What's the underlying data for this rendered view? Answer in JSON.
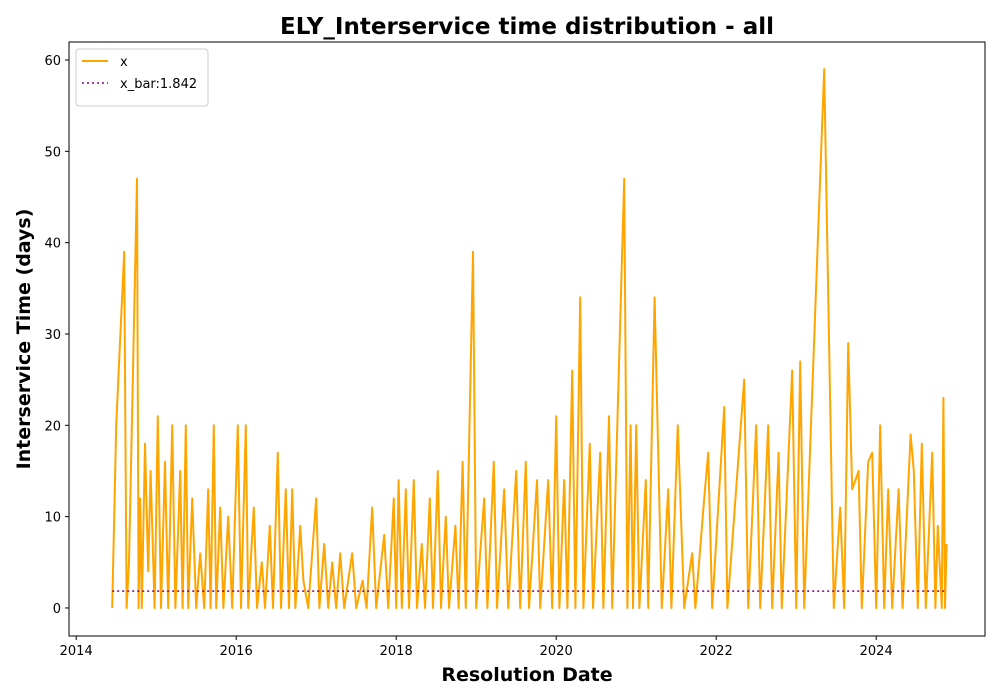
{
  "chart_data": {
    "type": "line",
    "title": "ELY_Interservice time distribution - all",
    "x_label": "Resolution Date",
    "y_label": "Interservice Time (days)",
    "xlim": [
      2013.91,
      2025.36
    ],
    "xticks": [
      2014,
      2016,
      2018,
      2020,
      2022,
      2024
    ],
    "ylim": [
      -3.07,
      61.97
    ],
    "yticks": [
      0,
      10,
      20,
      30,
      40,
      50,
      60
    ],
    "legend": "upper left",
    "series": [
      {
        "name": "x",
        "color": "#ffa500",
        "style": "solid",
        "x": [
          2014.45,
          2014.5,
          2014.6,
          2014.63,
          2014.66,
          2014.76,
          2014.78,
          2014.8,
          2014.82,
          2014.86,
          2014.9,
          2014.93,
          2014.98,
          2015.02,
          2015.06,
          2015.11,
          2015.15,
          2015.2,
          2015.24,
          2015.3,
          2015.33,
          2015.37,
          2015.4,
          2015.45,
          2015.5,
          2015.55,
          2015.6,
          2015.65,
          2015.68,
          2015.72,
          2015.75,
          2015.8,
          2015.84,
          2015.9,
          2015.95,
          2016.02,
          2016.06,
          2016.12,
          2016.15,
          2016.22,
          2016.26,
          2016.32,
          2016.36,
          2016.42,
          2016.46,
          2016.52,
          2016.56,
          2016.62,
          2016.66,
          2016.7,
          2016.74,
          2016.8,
          2016.84,
          2016.9,
          2017.0,
          2017.04,
          2017.1,
          2017.15,
          2017.2,
          2017.25,
          2017.3,
          2017.35,
          2017.45,
          2017.5,
          2017.58,
          2017.63,
          2017.7,
          2017.75,
          2017.85,
          2017.9,
          2017.97,
          2018.0,
          2018.03,
          2018.07,
          2018.12,
          2018.16,
          2018.22,
          2018.26,
          2018.32,
          2018.36,
          2018.42,
          2018.46,
          2018.52,
          2018.56,
          2018.62,
          2018.66,
          2018.74,
          2018.78,
          2018.83,
          2018.87,
          2018.96,
          2019.0,
          2019.1,
          2019.14,
          2019.22,
          2019.26,
          2019.35,
          2019.4,
          2019.5,
          2019.55,
          2019.62,
          2019.66,
          2019.76,
          2019.8,
          2019.9,
          2019.95,
          2020.0,
          2020.04,
          2020.1,
          2020.14,
          2020.2,
          2020.24,
          2020.3,
          2020.34,
          2020.42,
          2020.46,
          2020.55,
          2020.59,
          2020.66,
          2020.7,
          2020.85,
          2020.89,
          2020.93,
          2020.96,
          2021.0,
          2021.04,
          2021.12,
          2021.15,
          2021.23,
          2021.32,
          2021.4,
          2021.44,
          2021.52,
          2021.6,
          2021.7,
          2021.74,
          2021.85,
          2021.9,
          2021.95,
          2022.1,
          2022.14,
          2022.35,
          2022.4,
          2022.5,
          2022.55,
          2022.65,
          2022.7,
          2022.78,
          2022.82,
          2022.95,
          2023.0,
          2023.05,
          2023.1,
          2023.35,
          2023.47,
          2023.55,
          2023.6,
          2023.65,
          2023.7,
          2023.78,
          2023.82,
          2023.9,
          2023.95,
          2024.0,
          2024.05,
          2024.1,
          2024.15,
          2024.2,
          2024.28,
          2024.33,
          2024.43,
          2024.47,
          2024.52,
          2024.57,
          2024.62,
          2024.7,
          2024.74,
          2024.77,
          2024.82,
          2024.84,
          2024.86,
          2024.88
        ],
        "values": [
          0,
          20,
          39,
          0,
          5,
          47,
          0,
          12,
          0,
          18,
          4,
          15,
          0,
          21,
          0,
          16,
          0,
          20,
          0,
          15,
          0,
          20,
          0,
          12,
          0,
          6,
          0,
          13,
          0,
          20,
          0,
          11,
          0,
          10,
          0,
          20,
          0,
          20,
          0,
          11,
          0,
          5,
          0,
          9,
          0,
          17,
          0,
          13,
          0,
          13,
          0,
          9,
          3,
          0,
          12,
          0,
          7,
          0,
          5,
          0,
          6,
          0,
          6,
          0,
          3,
          0,
          11,
          0,
          8,
          0,
          12,
          0,
          14,
          0,
          13,
          0,
          14,
          0,
          7,
          0,
          12,
          0,
          15,
          0,
          10,
          0,
          9,
          0,
          16,
          0,
          39,
          0,
          12,
          0,
          16,
          0,
          13,
          0,
          15,
          0,
          16,
          0,
          14,
          0,
          14,
          0,
          21,
          0,
          14,
          0,
          26,
          0,
          34,
          0,
          18,
          0,
          17,
          0,
          21,
          0,
          47,
          0,
          20,
          0,
          20,
          0,
          14,
          0,
          34,
          0,
          13,
          0,
          20,
          0,
          6,
          0,
          12,
          17,
          0,
          22,
          0,
          25,
          0,
          20,
          0,
          20,
          0,
          17,
          0,
          26,
          0,
          27,
          0,
          59,
          0,
          11,
          0,
          29,
          13,
          15,
          0,
          16,
          17,
          0,
          20,
          0,
          13,
          0,
          13,
          0,
          19,
          15,
          0,
          18,
          0,
          17,
          0,
          9,
          0,
          23,
          0,
          7
        ]
      },
      {
        "name": "x_bar:1.842",
        "color": "#800080",
        "style": "dotted",
        "x": [
          2014.45,
          2024.88
        ],
        "values": [
          1.842,
          1.842
        ]
      }
    ]
  }
}
